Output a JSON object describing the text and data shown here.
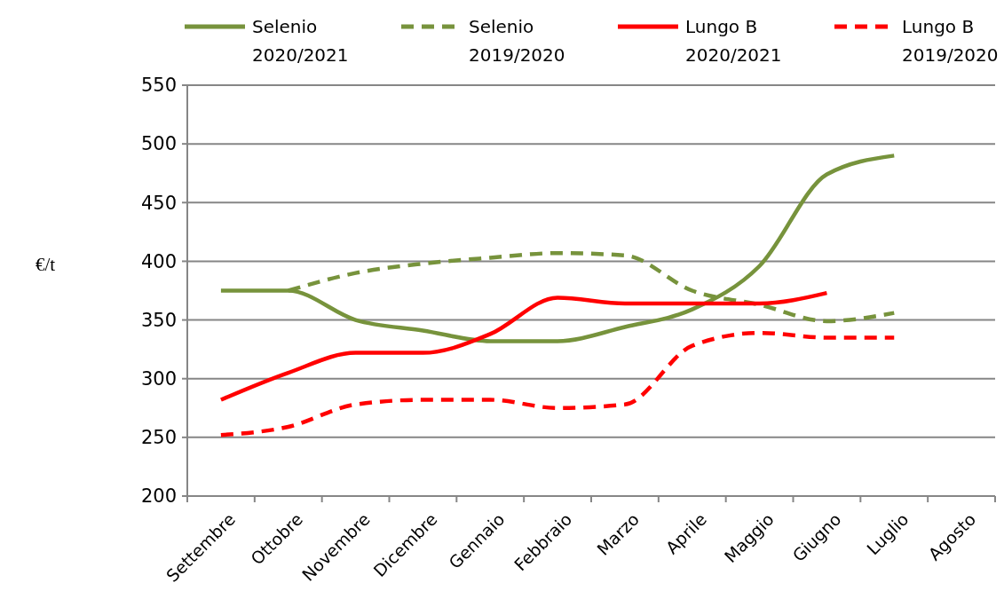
{
  "chart_data": {
    "type": "line",
    "ylabel": "€/t",
    "categories": [
      "Settembre",
      "Ottobre",
      "Novembre",
      "Dicembre",
      "Gennaio",
      "Febbraio",
      "Marzo",
      "Aprile",
      "Maggio",
      "Giugno",
      "Luglio",
      "Agosto"
    ],
    "series": [
      {
        "name": "Selenio 2020/2021",
        "color": "#77933c",
        "line_style": "solid",
        "values": [
          375,
          375,
          350,
          341,
          332,
          332,
          344,
          359,
          396,
          474,
          490,
          null
        ]
      },
      {
        "name": "Selenio 2019/2020",
        "color": "#77933c",
        "line_style": "dashed",
        "values": [
          null,
          375,
          390,
          398,
          403,
          407,
          405,
          375,
          363,
          349,
          356,
          null
        ]
      },
      {
        "name": "Lungo B 2020/2021",
        "color": "#ff0000",
        "line_style": "solid",
        "values": [
          282,
          305,
          322,
          322,
          338,
          369,
          364,
          364,
          364,
          373,
          null,
          null
        ]
      },
      {
        "name": "Lungo B 2019/2020",
        "color": "#ff0000",
        "line_style": "dashed",
        "values": [
          252,
          259,
          278,
          282,
          282,
          275,
          278,
          328,
          339,
          335,
          335,
          null
        ]
      }
    ],
    "ylim": [
      200,
      550
    ],
    "yticks": [
      200,
      250,
      300,
      350,
      400,
      450,
      500,
      550
    ],
    "grid": "y",
    "legend": "top",
    "marker": "none"
  }
}
